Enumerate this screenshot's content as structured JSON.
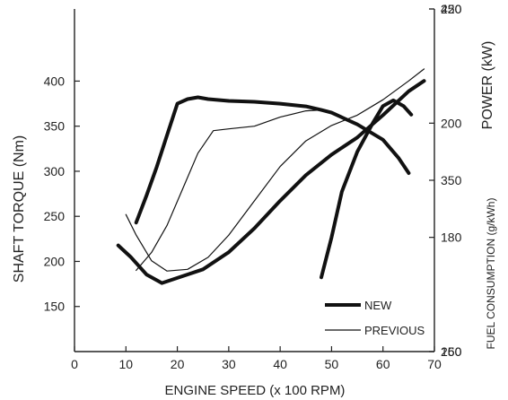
{
  "chart_data": {
    "type": "line",
    "x_axis": {
      "label": "ENGINE SPEED (x 100 RPM)",
      "range": [
        0,
        70
      ],
      "ticks": [
        0,
        10,
        20,
        30,
        40,
        50,
        60,
        70
      ]
    },
    "y_left": {
      "label": "SHAFT TORQUE (Nm)",
      "range": [
        100,
        480
      ],
      "ticks": [
        150,
        200,
        250,
        300,
        350,
        400
      ]
    },
    "y_right_power": {
      "label": "POWER (kW)",
      "range": [
        160,
        220
      ],
      "ticks": [
        160,
        180,
        200,
        220
      ]
    },
    "y_right_fuel": {
      "label": "FUEL CONSUMPTION (g/kWh)",
      "range": [
        250,
        450
      ],
      "ticks": [
        250,
        350,
        450
      ]
    },
    "legend": {
      "placement": "bottom-right",
      "entries": [
        {
          "label": "NEW",
          "style": "thick"
        },
        {
          "label": "PREVIOUS",
          "style": "thin"
        }
      ]
    },
    "colors": {
      "line": "#111111",
      "axis": "#222222"
    },
    "series": [
      {
        "name": "NEW",
        "quantity": "torque",
        "axis": "y_left",
        "style": "thick",
        "points": [
          [
            12,
            243
          ],
          [
            14,
            273
          ],
          [
            16,
            305
          ],
          [
            18,
            340
          ],
          [
            20,
            375
          ],
          [
            22,
            380
          ],
          [
            24,
            382
          ],
          [
            26,
            380
          ],
          [
            30,
            378
          ],
          [
            35,
            377
          ],
          [
            40,
            375
          ],
          [
            45,
            372
          ],
          [
            48,
            368
          ],
          [
            50,
            365
          ],
          [
            55,
            352
          ],
          [
            60,
            335
          ],
          [
            63,
            315
          ],
          [
            65,
            298
          ]
        ]
      },
      {
        "name": "PREVIOUS",
        "quantity": "torque",
        "axis": "y_left",
        "style": "thin",
        "points": [
          [
            12,
            190
          ],
          [
            15,
            210
          ],
          [
            18,
            240
          ],
          [
            21,
            280
          ],
          [
            24,
            320
          ],
          [
            27,
            345
          ],
          [
            30,
            347
          ],
          [
            35,
            350
          ],
          [
            40,
            360
          ],
          [
            45,
            367
          ],
          [
            48,
            368
          ]
        ]
      },
      {
        "name": "NEW",
        "quantity": "power",
        "axis": "y_right_power",
        "style": "thick",
        "points": [
          [
            48,
            173
          ],
          [
            50,
            180
          ],
          [
            52,
            188
          ],
          [
            55,
            195
          ],
          [
            58,
            200
          ],
          [
            60,
            203
          ],
          [
            62,
            204
          ],
          [
            64,
            203
          ],
          [
            65.5,
            201.5
          ]
        ]
      },
      {
        "name": "NEW",
        "quantity": "fuel",
        "axis": "y_right_fuel",
        "style": "thick",
        "points": [
          [
            8.5,
            312
          ],
          [
            11,
            305
          ],
          [
            14,
            295
          ],
          [
            17,
            290
          ],
          [
            20,
            293
          ],
          [
            25,
            298
          ],
          [
            30,
            308
          ],
          [
            35,
            322
          ],
          [
            40,
            338
          ],
          [
            45,
            353
          ],
          [
            50,
            365
          ],
          [
            55,
            375
          ],
          [
            60,
            388
          ],
          [
            65,
            402
          ],
          [
            68,
            408
          ]
        ]
      },
      {
        "name": "PREVIOUS",
        "quantity": "fuel",
        "axis": "y_right_fuel",
        "style": "thin",
        "points": [
          [
            10,
            330
          ],
          [
            12,
            318
          ],
          [
            15,
            303
          ],
          [
            18,
            297
          ],
          [
            22,
            298
          ],
          [
            26,
            305
          ],
          [
            30,
            318
          ],
          [
            35,
            338
          ],
          [
            40,
            358
          ],
          [
            45,
            373
          ],
          [
            50,
            382
          ],
          [
            55,
            388
          ],
          [
            60,
            397
          ],
          [
            65,
            408
          ],
          [
            68,
            415
          ]
        ]
      }
    ]
  }
}
